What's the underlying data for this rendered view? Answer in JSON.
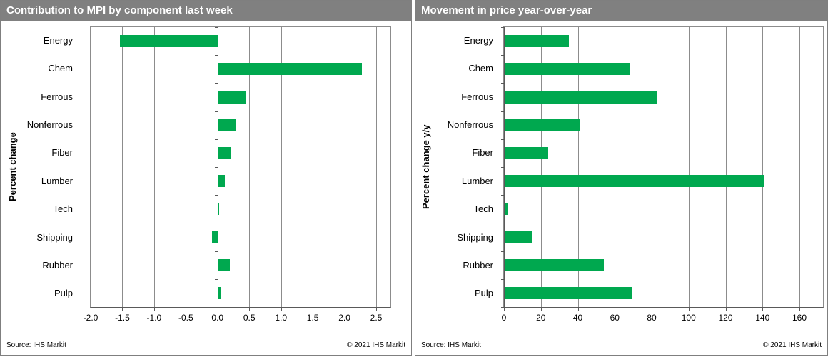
{
  "colors": {
    "header_bg": "#808080",
    "header_text": "#ffffff",
    "bar_green": "#00a84f",
    "gridline": "#8c8c8c",
    "axis": "#595959"
  },
  "panels": [
    {
      "source": "Source: IHS Markit",
      "copyright": "© 2021 IHS Markit"
    },
    {
      "source": "Source: IHS Markit",
      "copyright": "© 2021 IHS Markit"
    }
  ],
  "chart_data": [
    {
      "type": "bar",
      "orientation": "horizontal",
      "title": "Contribution to MPI by component last week",
      "xlabel": "",
      "ylabel": "Percent change",
      "categories": [
        "Energy",
        "Chem",
        "Ferrous",
        "Nonferrous",
        "Fiber",
        "Lumber",
        "Tech",
        "Shipping",
        "Rubber",
        "Pulp"
      ],
      "values": [
        -1.54,
        2.28,
        0.44,
        0.3,
        0.21,
        0.11,
        0.03,
        -0.09,
        0.19,
        0.05
      ],
      "xlim": [
        -2.0,
        2.5
      ],
      "xtick_values": [
        -2.0,
        -1.5,
        -1.0,
        -0.5,
        0.0,
        0.5,
        1.0,
        1.5,
        2.0,
        2.5
      ],
      "xtick_labels": [
        "-2.0",
        "-1.5",
        "-1.0",
        "-0.5",
        "0.0",
        "0.5",
        "1.0",
        "1.5",
        "2.0",
        "2.5"
      ],
      "bar_color": "#00a84f",
      "grid": true,
      "legend": false
    },
    {
      "type": "bar",
      "orientation": "horizontal",
      "title": "Movement in price year-over-year",
      "xlabel": "",
      "ylabel": "Percent change y/y",
      "categories": [
        "Energy",
        "Chem",
        "Ferrous",
        "Nonferrous",
        "Fiber",
        "Lumber",
        "Tech",
        "Shipping",
        "Rubber",
        "Pulp"
      ],
      "values": [
        35,
        68,
        83,
        41,
        24,
        141,
        2.5,
        15,
        54,
        69
      ],
      "xlim": [
        0,
        160
      ],
      "xtick_values": [
        0,
        20,
        40,
        60,
        80,
        100,
        120,
        140,
        160
      ],
      "xtick_labels": [
        "0",
        "20",
        "40",
        "60",
        "80",
        "100",
        "120",
        "140",
        "160"
      ],
      "bar_color": "#00a84f",
      "grid": true,
      "legend": false
    }
  ]
}
